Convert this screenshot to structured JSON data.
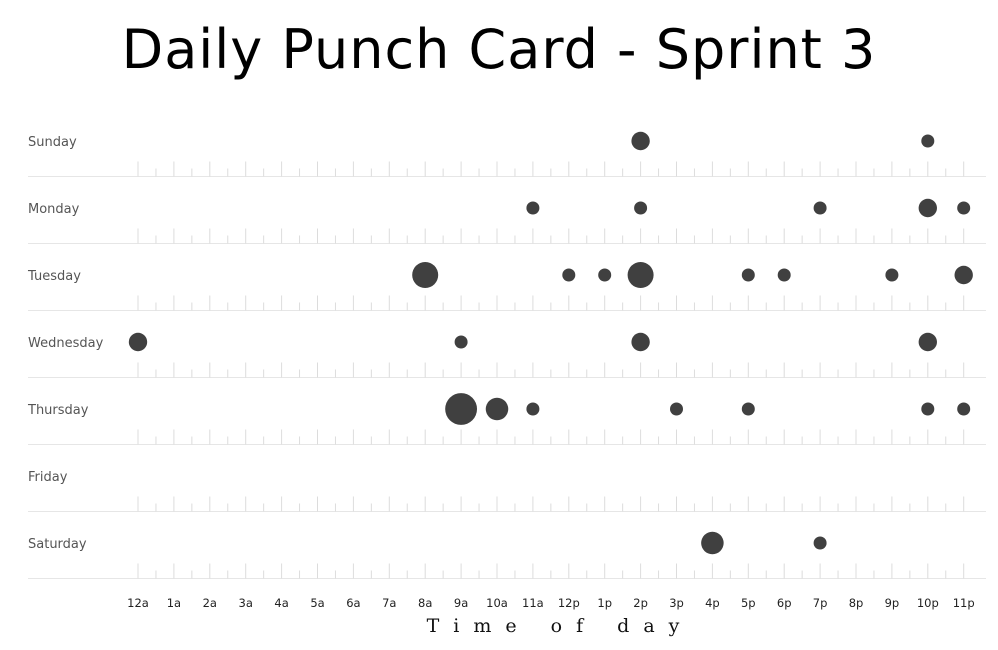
{
  "chart_data": {
    "type": "scatter",
    "title": "Daily Punch Card - Sprint 3",
    "xlabel": "Time of day",
    "ylabel": "",
    "days": [
      "Sunday",
      "Monday",
      "Tuesday",
      "Wednesday",
      "Thursday",
      "Friday",
      "Saturday"
    ],
    "hours": [
      "12a",
      "1a",
      "2a",
      "3a",
      "4a",
      "5a",
      "6a",
      "7a",
      "8a",
      "9a",
      "10a",
      "11a",
      "12p",
      "1p",
      "2p",
      "3p",
      "4p",
      "5p",
      "6p",
      "7p",
      "8p",
      "9p",
      "10p",
      "11p"
    ],
    "points": [
      {
        "day": "Sunday",
        "hour": "2p",
        "value": 2
      },
      {
        "day": "Sunday",
        "hour": "10p",
        "value": 1
      },
      {
        "day": "Monday",
        "hour": "11a",
        "value": 1
      },
      {
        "day": "Monday",
        "hour": "2p",
        "value": 1
      },
      {
        "day": "Monday",
        "hour": "7p",
        "value": 1
      },
      {
        "day": "Monday",
        "hour": "10p",
        "value": 2
      },
      {
        "day": "Monday",
        "hour": "11p",
        "value": 1
      },
      {
        "day": "Tuesday",
        "hour": "8a",
        "value": 4
      },
      {
        "day": "Tuesday",
        "hour": "12p",
        "value": 1
      },
      {
        "day": "Tuesday",
        "hour": "1p",
        "value": 1
      },
      {
        "day": "Tuesday",
        "hour": "2p",
        "value": 4
      },
      {
        "day": "Tuesday",
        "hour": "5p",
        "value": 1
      },
      {
        "day": "Tuesday",
        "hour": "6p",
        "value": 1
      },
      {
        "day": "Tuesday",
        "hour": "9p",
        "value": 1
      },
      {
        "day": "Tuesday",
        "hour": "11p",
        "value": 2
      },
      {
        "day": "Wednesday",
        "hour": "12a",
        "value": 2
      },
      {
        "day": "Wednesday",
        "hour": "9a",
        "value": 1
      },
      {
        "day": "Wednesday",
        "hour": "2p",
        "value": 2
      },
      {
        "day": "Wednesday",
        "hour": "10p",
        "value": 2
      },
      {
        "day": "Thursday",
        "hour": "9a",
        "value": 6
      },
      {
        "day": "Thursday",
        "hour": "10a",
        "value": 3
      },
      {
        "day": "Thursday",
        "hour": "11a",
        "value": 1
      },
      {
        "day": "Thursday",
        "hour": "3p",
        "value": 1
      },
      {
        "day": "Thursday",
        "hour": "5p",
        "value": 1
      },
      {
        "day": "Thursday",
        "hour": "10p",
        "value": 1
      },
      {
        "day": "Thursday",
        "hour": "11p",
        "value": 1
      },
      {
        "day": "Saturday",
        "hour": "4p",
        "value": 3
      },
      {
        "day": "Saturday",
        "hour": "7p",
        "value": 1
      }
    ],
    "grid": true,
    "dot_color": "#404040"
  }
}
